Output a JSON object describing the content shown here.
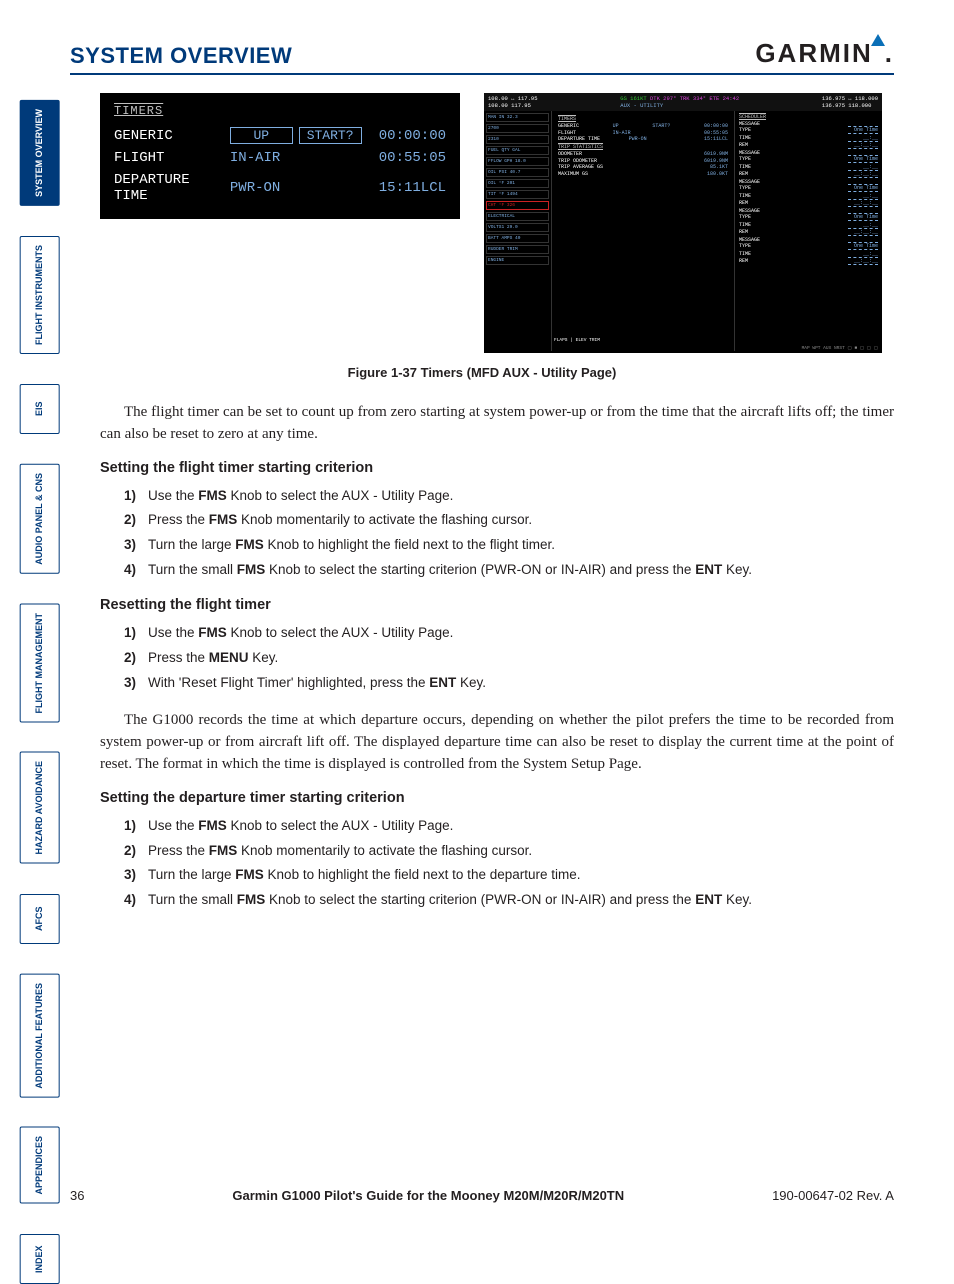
{
  "colors": {
    "brand_blue": "#003a7a",
    "cyan": "#7faee0",
    "text": "#231f20",
    "black": "#000000",
    "white": "#ffffff"
  },
  "header": {
    "title": "SYSTEM OVERVIEW",
    "logo_text": "GARMIN"
  },
  "tabs": [
    {
      "label": "SYSTEM OVERVIEW",
      "active": true
    },
    {
      "label": "FLIGHT INSTRUMENTS",
      "active": false
    },
    {
      "label": "EIS",
      "active": false
    },
    {
      "label": "AUDIO PANEL & CNS",
      "active": false
    },
    {
      "label": "FLIGHT MANAGEMENT",
      "active": false
    },
    {
      "label": "HAZARD AVOIDANCE",
      "active": false
    },
    {
      "label": "AFCS",
      "active": false
    },
    {
      "label": "ADDITIONAL FEATURES",
      "active": false
    },
    {
      "label": "APPENDICES",
      "active": false
    },
    {
      "label": "INDEX",
      "active": false
    }
  ],
  "timers_panel": {
    "title": "TIMERS",
    "rows": [
      {
        "label": "GENERIC",
        "c1": "UP",
        "c2": "START?",
        "val": "00:00:00",
        "boxed": true
      },
      {
        "label": "FLIGHT",
        "c1": "IN-AIR",
        "c2": "",
        "val": "00:55:05",
        "boxed": false
      },
      {
        "label": "DEPARTURE TIME",
        "c1": "PWR-ON",
        "c2": "",
        "val": "15:11LCL",
        "boxed": false
      }
    ]
  },
  "mfd": {
    "top": {
      "nav1": "108.00 ↔ 117.95",
      "nav2": "108.00    117.95",
      "gs": "GS 161KT",
      "dtk": "DTK 297°",
      "trk": "TRK 334°",
      "ete": "ETE 24:42",
      "com1": "136.975 ↔ 118.000",
      "com2": "136.975    118.000",
      "page": "AUX - UTILITY"
    },
    "left": {
      "manin": "MAN IN 32.3",
      "rpm": "2700",
      "fflow": "2310",
      "fuelqty": "FUEL QTY GAL",
      "fflowgph": "FFLOW GPH 18.0",
      "oilpsi": "OIL PSI 40.7",
      "oiltemp": "OIL °F 201",
      "tit": "TIT °F 1494",
      "cht": "CHT °F 326",
      "elec": "ELECTRICAL",
      "volts": "VOLTS1 29.0",
      "amps": "BATT AMPS 40",
      "rudder": "RUDDER TRIM",
      "engine": "ENGINE"
    },
    "center": {
      "timers_title": "TIMERS",
      "timers": [
        {
          "l": "GENERIC",
          "m": "UP",
          "r": "START?",
          "v": "00:00:00"
        },
        {
          "l": "FLIGHT",
          "m": "IN-AIR",
          "r": "",
          "v": "00:55:05"
        },
        {
          "l": "DEPARTURE TIME",
          "m": "PWR-ON",
          "r": "",
          "v": "15:11LCL"
        }
      ],
      "trip_title": "TRIP STATISTICS",
      "trip": [
        {
          "l": "ODOMETER",
          "v": "6019.9NM"
        },
        {
          "l": "TRIP ODOMETER",
          "v": "6019.9NM"
        },
        {
          "l": "TRIP AVERAGE GS",
          "v": "85.1KT"
        },
        {
          "l": "MAXIMUM GS",
          "v": "180.0KT"
        }
      ],
      "flaps": "FLAPS",
      "elev": "ELEV TRIM"
    },
    "right": {
      "title": "SCHEDULER",
      "blocks": [
        {
          "msg": "MESSAGE",
          "type": "TYPE",
          "typev": "One Time",
          "time": "TIME",
          "rem": "REM",
          "timev": "__:__",
          "remv": "__:__:__"
        },
        {
          "msg": "MESSAGE",
          "type": "TYPE",
          "typev": "One Time",
          "time": "TIME",
          "rem": "REM",
          "timev": "__:__",
          "remv": "__:__:__"
        },
        {
          "msg": "MESSAGE",
          "type": "TYPE",
          "typev": "One Time",
          "time": "TIME",
          "rem": "REM",
          "timev": "__:__",
          "remv": "__:__:__"
        },
        {
          "msg": "MESSAGE",
          "type": "TYPE",
          "typev": "One Time",
          "time": "TIME",
          "rem": "REM",
          "timev": "__:__",
          "remv": "__:__:__"
        },
        {
          "msg": "MESSAGE",
          "type": "TYPE",
          "typev": "One Time",
          "time": "TIME",
          "rem": "REM",
          "timev": "__:__",
          "remv": "__:__:__"
        }
      ]
    },
    "foot": "MAP WPT AUX NRST ▢ ■ ▢ ▢ ▢"
  },
  "fig_caption": "Figure 1-37 Timers (MFD AUX - Utility Page)",
  "para1_a": "The flight timer can be set to count up from zero starting at system power-up or from the time that the aircraft lifts off; the timer can also be reset to zero at any time.",
  "sec1_title": "Setting the flight timer starting criterion",
  "sec1_steps": [
    {
      "n": "1)",
      "pre": "Use the ",
      "b1": "FMS",
      "post": " Knob to select the AUX - Utility Page."
    },
    {
      "n": "2)",
      "pre": "Press the ",
      "b1": "FMS",
      "post": " Knob momentarily to activate the flashing cursor."
    },
    {
      "n": "3)",
      "pre": "Turn the large ",
      "b1": "FMS",
      "post": " Knob to highlight the field next to the flight timer."
    },
    {
      "n": "4)",
      "pre": "Turn the small ",
      "b1": "FMS",
      "mid": " Knob to select the starting criterion (PWR-ON or IN-AIR) and press the ",
      "b2": "ENT",
      "post": " Key."
    }
  ],
  "sec2_title": "Resetting the flight timer",
  "sec2_steps": [
    {
      "n": "1)",
      "pre": "Use the ",
      "b1": "FMS",
      "post": " Knob to select the AUX - Utility Page."
    },
    {
      "n": "2)",
      "pre": "Press the ",
      "b1": "MENU",
      "post": " Key."
    },
    {
      "n": "3)",
      "pre": "With 'Reset Flight Timer' highlighted, press the ",
      "b1": "ENT",
      "post": " Key."
    }
  ],
  "para2": "The G1000 records the time at which departure occurs, depending on whether the pilot prefers the time to be recorded from system power-up or from aircraft lift off.  The displayed departure time can also be reset to display the current time at the point of reset.  The format in which the time is displayed is controlled from the System Setup Page.",
  "sec3_title": "Setting the departure timer starting criterion",
  "sec3_steps": [
    {
      "n": "1)",
      "pre": "Use the ",
      "b1": "FMS",
      "post": " Knob to select the AUX - Utility Page."
    },
    {
      "n": "2)",
      "pre": "Press the ",
      "b1": "FMS",
      "post": " Knob momentarily to activate the flashing cursor."
    },
    {
      "n": "3)",
      "pre": "Turn the large ",
      "b1": "FMS",
      "post": " Knob to highlight the field next to the departure time."
    },
    {
      "n": "4)",
      "pre": "Turn the small ",
      "b1": "FMS",
      "mid": " Knob to select the starting criterion (PWR-ON or IN-AIR) and press the ",
      "b2": "ENT",
      "post": " Key."
    }
  ],
  "footer": {
    "page": "36",
    "center": "Garmin G1000 Pilot's Guide for the Mooney M20M/M20R/M20TN",
    "rev": "190-00647-02   Rev. A"
  }
}
